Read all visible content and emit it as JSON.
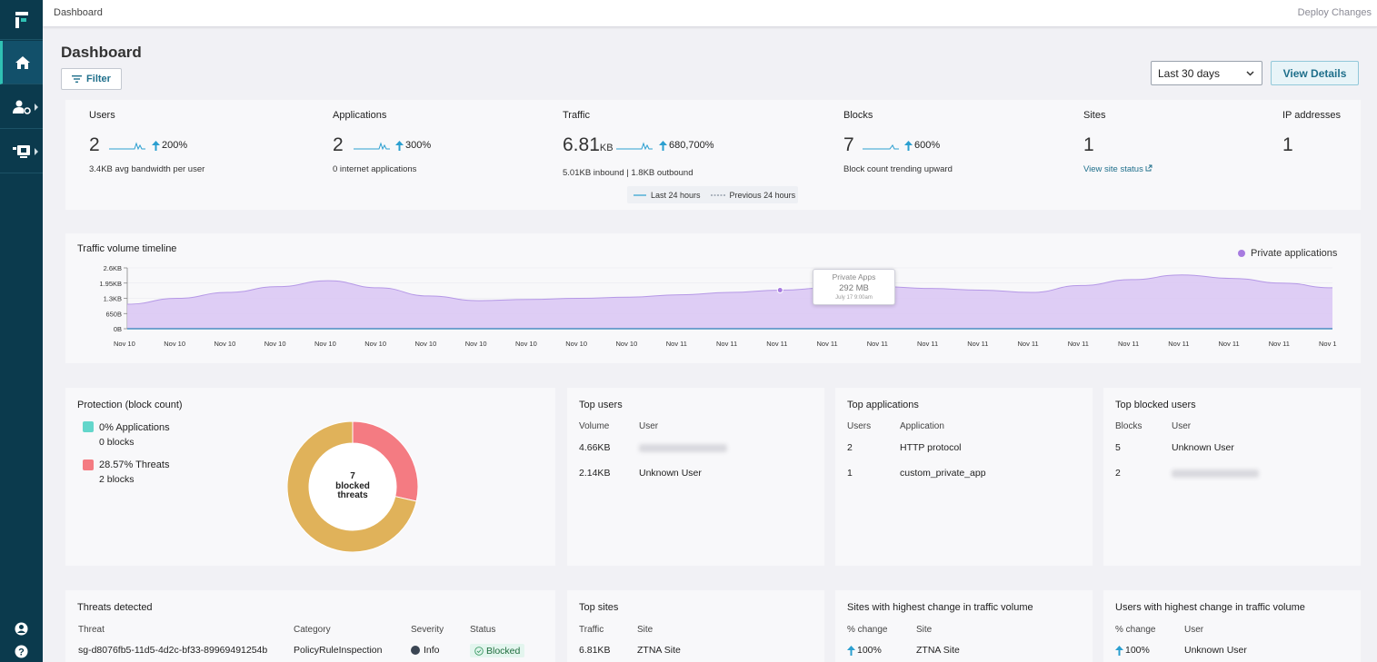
{
  "breadcrumb": "Dashboard",
  "deploy_label": "Deploy Changes",
  "page_title": "Dashboard",
  "filter_label": "Filter",
  "date_range": "Last 30 days",
  "view_details_label": "View Details",
  "kpis": {
    "users": {
      "label": "Users",
      "value": "2",
      "pct": "200%",
      "sub": "3.4KB avg bandwidth per user"
    },
    "applications": {
      "label": "Applications",
      "value": "2",
      "pct": "300%",
      "sub": "0 internet applications"
    },
    "traffic": {
      "label": "Traffic",
      "value": "6.81",
      "unit": "KB",
      "pct": "680,700%",
      "sub": "5.01KB inbound | 1.8KB outbound"
    },
    "blocks": {
      "label": "Blocks",
      "value": "7",
      "pct": "600%",
      "sub": "Block count trending upward"
    },
    "sites": {
      "label": "Sites",
      "value": "1",
      "link": "View site status"
    },
    "ip": {
      "label": "IP addresses",
      "value": "1"
    }
  },
  "kpi_legend": {
    "current": "Last 24 hours",
    "previous": "Previous 24 hours"
  },
  "timeline": {
    "title": "Traffic volume timeline",
    "legend": "Private applications",
    "tooltip": {
      "title": "Private Apps",
      "value": "292 MB",
      "date": "July 17  9:00am"
    }
  },
  "chart_data": {
    "type": "area",
    "y_ticks": [
      "0B",
      "650B",
      "1.3KB",
      "1.95KB",
      "2.6KB"
    ],
    "ylim": [
      0,
      2600
    ],
    "x": [
      "Nov 10",
      "Nov 10",
      "Nov 10",
      "Nov 10",
      "Nov 10",
      "Nov 10",
      "Nov 10",
      "Nov 10",
      "Nov 10",
      "Nov 10",
      "Nov 10",
      "Nov 11",
      "Nov 11",
      "Nov 11",
      "Nov 11",
      "Nov 11",
      "Nov 11",
      "Nov 11",
      "Nov 11",
      "Nov 11",
      "Nov 11",
      "Nov 11",
      "Nov 11",
      "Nov 11",
      "Nov 1"
    ],
    "series": [
      {
        "name": "Private applications",
        "color": "#a77be0",
        "values": [
          1050,
          1300,
          1550,
          1800,
          2050,
          1750,
          1400,
          1200,
          1250,
          1300,
          1350,
          1450,
          1550,
          1650,
          1750,
          1800,
          1720,
          1650,
          1550,
          1850,
          2100,
          2300,
          2150,
          1950,
          1750
        ]
      }
    ]
  },
  "protection": {
    "title": "Protection (block count)",
    "items": [
      {
        "label": "0% Applications",
        "sub": "0 blocks",
        "color": "#63d6cb"
      },
      {
        "label": "28.57% Threats",
        "sub": "2 blocks",
        "color": "#f47b82"
      }
    ],
    "donut_center": [
      "7",
      "blocked",
      "threats"
    ],
    "donut": [
      {
        "value": 2,
        "color": "#f47b82"
      },
      {
        "value": 5,
        "color": "#e0b25a"
      }
    ]
  },
  "top_users": {
    "title": "Top users",
    "headers": [
      "Volume",
      "User"
    ],
    "rows": [
      [
        "4.66KB",
        ""
      ],
      [
        "2.14KB",
        "Unknown User"
      ]
    ]
  },
  "top_apps": {
    "title": "Top applications",
    "headers": [
      "Users",
      "Application"
    ],
    "rows": [
      [
        "2",
        "HTTP protocol"
      ],
      [
        "1",
        "custom_private_app"
      ]
    ]
  },
  "top_blocked": {
    "title": "Top blocked users",
    "headers": [
      "Blocks",
      "User"
    ],
    "rows": [
      [
        "5",
        "Unknown User"
      ],
      [
        "2",
        ""
      ]
    ]
  },
  "threats": {
    "title": "Threats detected",
    "headers": [
      "Threat",
      "Category",
      "Severity",
      "Status"
    ],
    "row": [
      "sg-d8076fb5-11d5-4d2c-bf33-89969491254b",
      "PolicyRuleInspection",
      "Info",
      "Blocked"
    ]
  },
  "top_sites": {
    "title": "Top sites",
    "headers": [
      "Traffic",
      "Site"
    ],
    "row": [
      "6.81KB",
      "ZTNA Site"
    ]
  },
  "sites_change": {
    "title": "Sites with highest change in traffic volume",
    "headers": [
      "% change",
      "Site"
    ],
    "row": [
      "100%",
      "ZTNA Site"
    ]
  },
  "users_change": {
    "title": "Users with highest change in traffic volume",
    "headers": [
      "% change",
      "User"
    ],
    "row": [
      "100%",
      "Unknown User"
    ]
  }
}
